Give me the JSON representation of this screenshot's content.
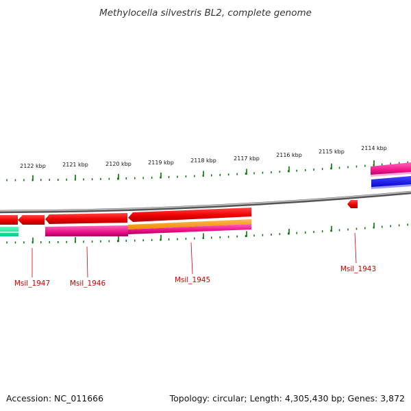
{
  "title": "Methylocella silvestris BL2, complete genome",
  "accession": "Accession: NC_011666",
  "summary": "Topology: circular; Length: 4,305,430 bp; Genes: 3,872",
  "kbp_labels": [
    "2122 kbp",
    "2121 kbp",
    "2120 kbp",
    "2119 kbp",
    "2118 kbp",
    "2117 kbp",
    "2116 kbp",
    "2115 kbp",
    "2114 kbp"
  ],
  "gene_labels": [
    "Msil_1947",
    "Msil_1946",
    "Msil_1945",
    "Msil_1943"
  ],
  "colors": {
    "cds_red": "#ee0000",
    "gene_magenta": "#ee1188",
    "rna_orange": "#ff9900",
    "blue": "#0000ee",
    "teal": "#11dd99",
    "tick_green": "#007700",
    "label_red": "#cc0000",
    "backbone_gray": "#888888"
  }
}
